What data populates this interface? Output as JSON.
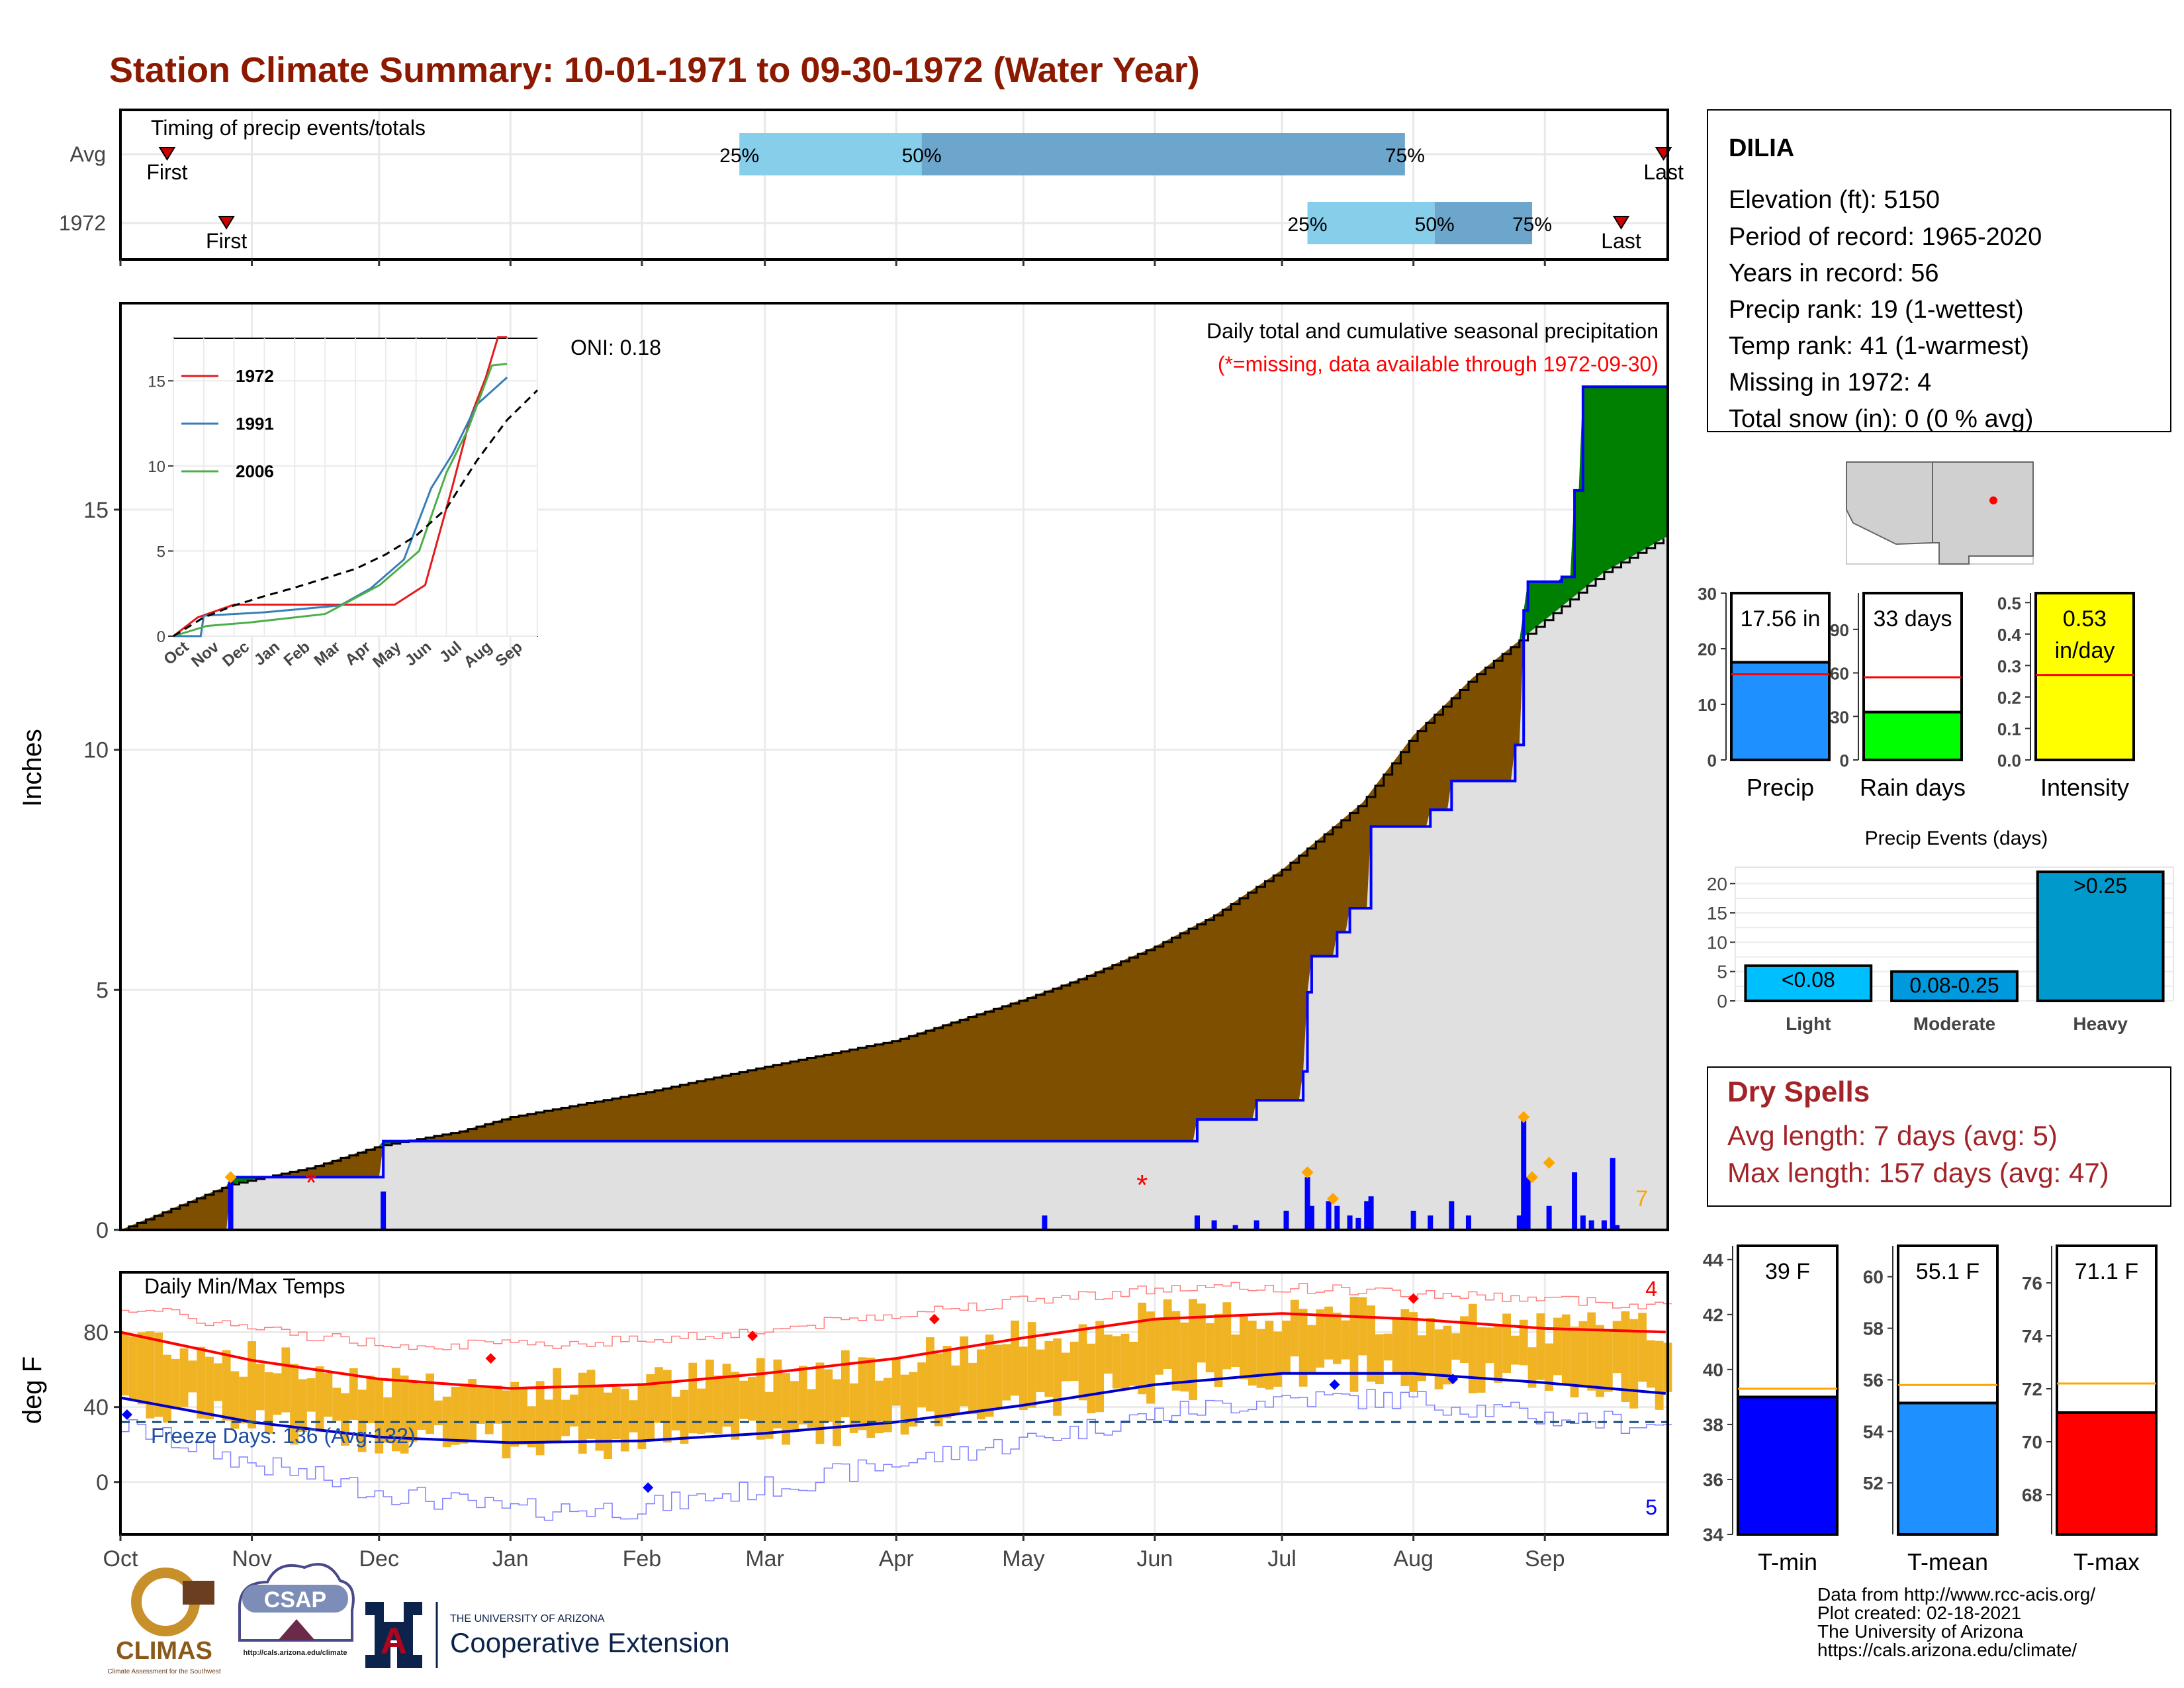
{
  "title": "Station Climate Summary: 10-01-1971 to 09-30-1972 (Water Year)",
  "colors": {
    "title": "#8B1A00",
    "brown": "#7F4F00",
    "green": "#008000",
    "blue": "#0000FF",
    "gray_fill": "#E0E0E0",
    "lightblue": "#87CEEB",
    "midblue": "#6CA6CD",
    "gold": "#F0B323",
    "red": "#FF0000",
    "orange": "#FFA500",
    "darkred": "#A32428",
    "dodger": "#1E90FF",
    "lime": "#00FF00",
    "yellow": "#FFFF00",
    "cyan": "#00BFFF",
    "heavyblue": "#0099CC"
  },
  "timing": {
    "title": "Timing of precip events/totals",
    "rows": [
      {
        "label": "Avg",
        "first_date": "1971-10-12",
        "q25": "1972-02-24",
        "q50": "1972-04-07",
        "q75": "1972-07-30",
        "last_date": "1972-09-29"
      },
      {
        "label": "1972",
        "first_date": "1971-10-26",
        "q25": "1972-07-07",
        "q50": "1972-08-06",
        "q75": "1972-08-29",
        "last_date": "1972-09-19"
      }
    ],
    "labels": {
      "first": "First",
      "last": "Last",
      "p25": "25%",
      "p50": "50%",
      "p75": "75%"
    }
  },
  "info": {
    "station": "DILIA",
    "lines": [
      "Elevation (ft): 5150",
      "Period of record: 1965-2020",
      "Years in record: 56",
      "Precip rank: 19 (1-wettest)",
      "Temp rank: 41 (1-warmest)",
      "Missing in 1972: 4",
      "Total snow (in): 0 (0 % avg)"
    ]
  },
  "chart_data": [
    {
      "type": "area",
      "name": "precip_main",
      "title": "Daily total and cumulative seasonal precipitation",
      "subtitle": "(*=missing, data available through 1972-09-30)",
      "oni": "ONI: 0.18",
      "ylabel": "Inches",
      "ylim": [
        0,
        19.3
      ],
      "yticks": [
        0,
        5,
        10,
        15
      ],
      "x_range": [
        "1971-10-01",
        "1972-09-30"
      ],
      "month_labels": [
        "Oct",
        "Nov",
        "Dec",
        "Jan",
        "Feb",
        "Mar",
        "Apr",
        "May",
        "Jun",
        "Jul",
        "Aug",
        "Sep"
      ],
      "avg_cumulative": [
        [
          "1971-10-01",
          0
        ],
        [
          "1971-10-27",
          0.95
        ],
        [
          "1971-11-15",
          1.3
        ],
        [
          "1971-12-01",
          1.75
        ],
        [
          "1971-12-20",
          2.05
        ],
        [
          "1972-01-01",
          2.35
        ],
        [
          "1972-02-01",
          2.85
        ],
        [
          "1972-03-01",
          3.4
        ],
        [
          "1972-04-01",
          3.95
        ],
        [
          "1972-05-01",
          4.8
        ],
        [
          "1972-05-15",
          5.25
        ],
        [
          "1972-06-01",
          5.9
        ],
        [
          "1972-06-15",
          6.55
        ],
        [
          "1972-07-01",
          7.5
        ],
        [
          "1972-07-20",
          8.9
        ],
        [
          "1972-08-01",
          10.3
        ],
        [
          "1972-08-15",
          11.5
        ],
        [
          "1972-09-01",
          12.7
        ],
        [
          "1972-09-15",
          13.7
        ],
        [
          "1972-09-30",
          14.45
        ]
      ],
      "year_cumulative": [
        [
          "1971-10-01",
          0
        ],
        [
          "1971-10-26",
          0
        ],
        [
          "1971-10-27",
          1.1
        ],
        [
          "1971-12-01",
          1.1
        ],
        [
          "1971-12-02",
          1.85
        ],
        [
          "1972-05-01",
          1.85
        ],
        [
          "1972-06-10",
          1.85
        ],
        [
          "1972-06-11",
          2.3
        ],
        [
          "1972-06-25",
          2.7
        ],
        [
          "1972-07-06",
          3.3
        ],
        [
          "1972-07-07",
          4.95
        ],
        [
          "1972-07-08",
          5.7
        ],
        [
          "1972-07-14",
          6.2
        ],
        [
          "1972-07-17",
          6.7
        ],
        [
          "1972-07-22",
          8.4
        ],
        [
          "1972-08-05",
          8.75
        ],
        [
          "1972-08-10",
          9.35
        ],
        [
          "1972-08-25",
          10.1
        ],
        [
          "1972-08-27",
          12.9
        ],
        [
          "1972-08-28",
          13.5
        ],
        [
          "1972-09-05",
          13.6
        ],
        [
          "1972-09-08",
          15.4
        ],
        [
          "1972-09-10",
          17.56
        ],
        [
          "1972-09-30",
          17.56
        ]
      ],
      "daily_bars": [
        [
          "1971-10-27",
          1.0
        ],
        [
          "1971-12-02",
          0.8
        ],
        [
          "1972-05-06",
          0.3
        ],
        [
          "1972-06-11",
          0.3
        ],
        [
          "1972-06-15",
          0.2
        ],
        [
          "1972-06-20",
          0.1
        ],
        [
          "1972-06-25",
          0.2
        ],
        [
          "1972-07-02",
          0.4
        ],
        [
          "1972-07-07",
          1.1
        ],
        [
          "1972-07-08",
          0.5
        ],
        [
          "1972-07-12",
          0.6
        ],
        [
          "1972-07-14",
          0.5
        ],
        [
          "1972-07-17",
          0.3
        ],
        [
          "1972-07-19",
          0.25
        ],
        [
          "1972-07-21",
          0.6
        ],
        [
          "1972-07-22",
          0.7
        ],
        [
          "1972-08-01",
          0.4
        ],
        [
          "1972-08-05",
          0.3
        ],
        [
          "1972-08-10",
          0.6
        ],
        [
          "1972-08-14",
          0.3
        ],
        [
          "1972-08-26",
          0.3
        ],
        [
          "1972-08-27",
          2.3
        ],
        [
          "1972-08-28",
          1.1
        ],
        [
          "1972-09-02",
          0.5
        ],
        [
          "1972-09-08",
          1.2
        ],
        [
          "1972-09-10",
          0.3
        ],
        [
          "1972-09-12",
          0.2
        ],
        [
          "1972-09-15",
          0.2
        ],
        [
          "1972-09-17",
          1.5
        ],
        [
          "1972-09-18",
          0.1
        ]
      ],
      "markers_orange": [
        [
          "1971-10-27",
          1.1
        ],
        [
          "1972-07-07",
          1.2
        ],
        [
          "1972-07-13",
          0.65
        ],
        [
          "1972-08-27",
          2.35
        ],
        [
          "1972-08-29",
          1.1
        ],
        [
          "1972-09-02",
          1.4
        ]
      ],
      "missing_markers": [
        [
          "1971-11-15",
          1.0
        ],
        [
          "1972-05-29",
          0.95
        ]
      ],
      "corner_count": "7"
    },
    {
      "type": "line",
      "name": "inset_cumulative",
      "ylim": [
        0,
        17.5
      ],
      "yticks": [
        0,
        5,
        10,
        15
      ],
      "month_labels": [
        "Oct",
        "Nov",
        "Dec",
        "Jan",
        "Feb",
        "Mar",
        "Apr",
        "May",
        "Jun",
        "Jul",
        "Aug",
        "Sep"
      ],
      "series": [
        {
          "name": "1972",
          "color": "#E41A1C",
          "points": [
            [
              0,
              0
            ],
            [
              0.8,
              1.1
            ],
            [
              2.0,
              1.85
            ],
            [
              7.3,
              1.85
            ],
            [
              8.3,
              3.0
            ],
            [
              9.2,
              8.8
            ],
            [
              9.8,
              12.9
            ],
            [
              10.3,
              15.2
            ],
            [
              10.7,
              17.56
            ],
            [
              11.0,
              17.56
            ]
          ]
        },
        {
          "name": "1991",
          "color": "#377EB8",
          "points": [
            [
              0,
              0
            ],
            [
              0.9,
              0
            ],
            [
              1.0,
              1.2
            ],
            [
              3.0,
              1.4
            ],
            [
              5.5,
              1.8
            ],
            [
              6.5,
              2.8
            ],
            [
              7.6,
              4.5
            ],
            [
              8.5,
              8.7
            ],
            [
              9.2,
              10.7
            ],
            [
              10.0,
              13.6
            ],
            [
              11.0,
              15.2
            ]
          ]
        },
        {
          "name": "2006",
          "color": "#4DAF4A",
          "points": [
            [
              0,
              0
            ],
            [
              1.1,
              0.6
            ],
            [
              2.5,
              0.8
            ],
            [
              5.0,
              1.3
            ],
            [
              6.8,
              3.0
            ],
            [
              8.1,
              5.0
            ],
            [
              9.0,
              9.6
            ],
            [
              9.7,
              12.1
            ],
            [
              10.5,
              15.9
            ],
            [
              11.0,
              16.0
            ]
          ]
        },
        {
          "color": "#000000",
          "dashed": true,
          "points": [
            [
              0,
              0
            ],
            [
              1.0,
              1.1
            ],
            [
              2.0,
              1.8
            ],
            [
              3.0,
              2.35
            ],
            [
              4.0,
              2.85
            ],
            [
              5.0,
              3.4
            ],
            [
              6.0,
              3.95
            ],
            [
              7.0,
              4.8
            ],
            [
              8.0,
              5.9
            ],
            [
              9.0,
              7.5
            ],
            [
              10.0,
              10.3
            ],
            [
              11.0,
              12.7
            ],
            [
              12.0,
              14.45
            ]
          ]
        }
      ]
    },
    {
      "type": "bar",
      "name": "precip_total",
      "categories": [
        "Precip"
      ],
      "values": [
        17.56
      ],
      "avg": 15.4,
      "ylim": [
        0,
        30
      ],
      "yticks": [
        0,
        10,
        20,
        30
      ],
      "label": "17.56 in"
    },
    {
      "type": "bar",
      "name": "rain_days",
      "categories": [
        "Rain days"
      ],
      "values": [
        33
      ],
      "avg": 57,
      "ylim": [
        0,
        115
      ],
      "yticks": [
        0,
        30,
        60,
        90
      ],
      "label": "33 days"
    },
    {
      "type": "bar",
      "name": "intensity",
      "categories": [
        "Intensity"
      ],
      "values": [
        0.53
      ],
      "avg": 0.27,
      "ylim": [
        0,
        0.53
      ],
      "yticks": [
        0.0,
        0.1,
        0.2,
        0.3,
        0.4,
        0.5
      ],
      "label": "0.53",
      "label2": "in/day"
    },
    {
      "type": "bar",
      "name": "precip_events",
      "title": "Precip Events (days)",
      "categories": [
        "Light",
        "Moderate",
        "Heavy"
      ],
      "values": [
        6,
        5,
        22
      ],
      "bar_labels": [
        "<0.08",
        "0.08-0.25",
        ">0.25"
      ],
      "ylim": [
        0,
        22.8
      ],
      "yticks": [
        0,
        5,
        10,
        15,
        20
      ]
    },
    {
      "type": "line",
      "name": "temps",
      "title": "Daily Min/Max Temps",
      "ylabel": "deg F",
      "ylim": [
        -28,
        112
      ],
      "yticks": [
        0,
        40,
        80
      ],
      "freeze_label": "Freeze Days: 136 (Avg:132)",
      "freeze_line": 32,
      "count_hot": "4",
      "count_cold": "5",
      "month_labels": [
        "Oct",
        "Nov",
        "Dec",
        "Jan",
        "Feb",
        "Mar",
        "Apr",
        "May",
        "Jun",
        "Jul",
        "Aug",
        "Sep"
      ],
      "avg_max": [
        [
          0,
          80
        ],
        [
          1,
          65
        ],
        [
          2,
          55
        ],
        [
          3,
          50
        ],
        [
          4,
          52
        ],
        [
          5,
          58
        ],
        [
          6,
          66
        ],
        [
          7,
          77
        ],
        [
          8,
          87
        ],
        [
          9,
          90
        ],
        [
          10,
          87
        ],
        [
          11,
          82
        ],
        [
          12,
          80
        ]
      ],
      "avg_min": [
        [
          0,
          45
        ],
        [
          1,
          32
        ],
        [
          2,
          24
        ],
        [
          3,
          21
        ],
        [
          4,
          22
        ],
        [
          5,
          26
        ],
        [
          6,
          32
        ],
        [
          7,
          41
        ],
        [
          8,
          52
        ],
        [
          9,
          58
        ],
        [
          10,
          58
        ],
        [
          11,
          53
        ],
        [
          12,
          47
        ]
      ],
      "rec_max": [
        [
          0,
          94
        ],
        [
          1,
          82
        ],
        [
          2,
          74
        ],
        [
          3,
          73
        ],
        [
          4,
          76
        ],
        [
          5,
          81
        ],
        [
          6,
          90
        ],
        [
          7,
          97
        ],
        [
          8,
          103
        ],
        [
          9,
          104
        ],
        [
          10,
          101
        ],
        [
          11,
          98
        ],
        [
          12,
          94
        ]
      ],
      "rec_min": [
        [
          0,
          30
        ],
        [
          1,
          10
        ],
        [
          2,
          -5
        ],
        [
          3,
          -15
        ],
        [
          4,
          -14
        ],
        [
          5,
          -3
        ],
        [
          6,
          10
        ],
        [
          7,
          22
        ],
        [
          8,
          36
        ],
        [
          9,
          45
        ],
        [
          10,
          44
        ],
        [
          11,
          35
        ],
        [
          12,
          30
        ]
      ],
      "markers_red": [
        [
          2.85,
          66
        ],
        [
          4.9,
          78
        ],
        [
          6.3,
          87
        ],
        [
          10.0,
          98
        ]
      ],
      "markers_blue": [
        [
          0.05,
          36
        ],
        [
          4.05,
          -3
        ],
        [
          9.4,
          52
        ],
        [
          10.3,
          55
        ]
      ]
    },
    {
      "type": "bar",
      "name": "tmin_box",
      "categories": [
        "T-min"
      ],
      "values": [
        39
      ],
      "avg": 39.3,
      "ylim": [
        34,
        44.5
      ],
      "yticks": [
        34,
        36,
        38,
        40,
        42,
        44
      ],
      "label": "39 F"
    },
    {
      "type": "bar",
      "name": "tmean_box",
      "categories": [
        "T-mean"
      ],
      "values": [
        55.1
      ],
      "avg": 55.8,
      "ylim": [
        50,
        61.2
      ],
      "yticks": [
        52,
        54,
        56,
        58,
        60
      ],
      "label": "55.1 F"
    },
    {
      "type": "bar",
      "name": "tmax_box",
      "categories": [
        "T-max"
      ],
      "values": [
        71.1
      ],
      "avg": 72.2,
      "ylim": [
        66.5,
        77.4
      ],
      "yticks": [
        68,
        70,
        72,
        74,
        76
      ],
      "label": "71.1 F"
    }
  ],
  "dry_spells": {
    "title": "Dry Spells",
    "avg_line": "Avg length: 7 days (avg: 5)",
    "max_line": "Max length: 157 days (avg: 47)"
  },
  "footer": {
    "credits": [
      "Data from http://www.rcc-acis.org/",
      "Plot created: 02-18-2021",
      "The University of Arizona",
      "https://cals.arizona.edu/climate/"
    ],
    "climas": "CLIMAS",
    "climas_sub": "Climate Assessment for the Southwest",
    "csap": "CSAP",
    "csap_url": "http://cals.arizona.edu/climate",
    "ua_small": "THE UNIVERSITY OF ARIZONA",
    "ua_big": "Cooperative Extension",
    "ua_letter": "A"
  }
}
